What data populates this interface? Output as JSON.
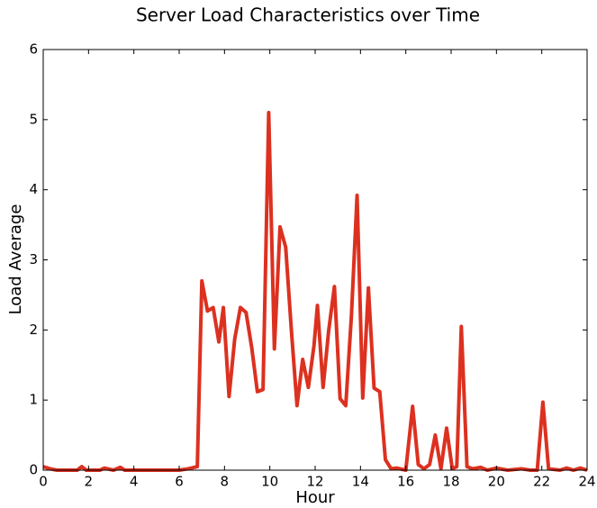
{
  "chart_data": {
    "type": "line",
    "title": "Server Load Characteristics over Time",
    "x_label": "Hour",
    "y_label": "Load Average",
    "x": [
      0,
      0.3,
      0.6,
      1.5,
      1.7,
      1.9,
      2.5,
      2.7,
      3.1,
      3.4,
      3.6,
      6.0,
      6.4,
      6.8,
      7.0,
      7.25,
      7.5,
      7.75,
      7.95,
      8.2,
      8.45,
      8.7,
      8.95,
      9.2,
      9.45,
      9.7,
      9.95,
      10.2,
      10.45,
      10.7,
      10.95,
      11.2,
      11.45,
      11.7,
      11.95,
      12.1,
      12.35,
      12.6,
      12.85,
      13.1,
      13.35,
      13.6,
      13.85,
      14.1,
      14.35,
      14.6,
      14.85,
      15.1,
      15.35,
      15.6,
      16.0,
      16.3,
      16.55,
      16.8,
      17.05,
      17.3,
      17.55,
      17.8,
      18.05,
      18.25,
      18.45,
      18.7,
      18.95,
      19.3,
      19.6,
      20.0,
      20.5,
      21.1,
      21.5,
      21.8,
      22.05,
      22.3,
      22.8,
      23.1,
      23.4,
      23.7,
      24
    ],
    "series": [
      {
        "name": "Load",
        "color": "#dc3120",
        "values": [
          0.05,
          0.02,
          0,
          0,
          0.05,
          0,
          0,
          0.03,
          0,
          0.04,
          0,
          0,
          0.02,
          0.05,
          2.7,
          2.27,
          2.32,
          1.83,
          2.32,
          1.05,
          1.87,
          2.32,
          2.25,
          1.75,
          1.12,
          1.15,
          5.1,
          1.73,
          3.47,
          3.18,
          2.0,
          0.92,
          1.58,
          1.18,
          1.78,
          2.35,
          1.18,
          2.0,
          2.62,
          1.02,
          0.92,
          2.2,
          3.92,
          1.03,
          2.6,
          1.17,
          1.12,
          0.15,
          0.02,
          0.03,
          0,
          0.91,
          0.08,
          0.02,
          0.08,
          0.5,
          0.02,
          0.6,
          0.02,
          0.05,
          2.05,
          0.05,
          0.02,
          0.04,
          0,
          0.03,
          0,
          0.02,
          0,
          0,
          0.97,
          0.02,
          0,
          0.03,
          0,
          0.03,
          0
        ]
      }
    ],
    "xlim": [
      0,
      24
    ],
    "xticks": [
      0,
      2,
      4,
      6,
      8,
      10,
      12,
      14,
      16,
      18,
      20,
      22,
      24
    ],
    "ylim": [
      0,
      6
    ],
    "yticks": [
      0,
      1,
      2,
      3,
      4,
      5,
      6
    ],
    "grid": false
  }
}
